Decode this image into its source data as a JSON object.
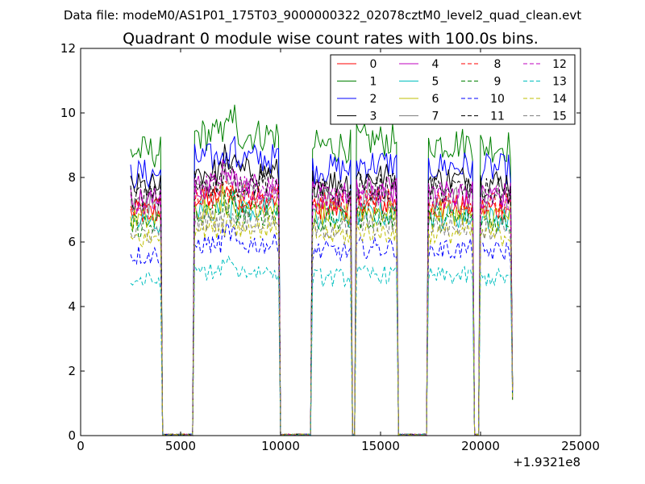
{
  "chart_data": {
    "type": "line",
    "suptitle": "Data file: modeM0/AS1P01_175T03_9000000322_02078cztM0_level2_quad_clean.evt",
    "title": "Quadrant 0 module wise count rates with 100.0s bins.",
    "xlabel": "",
    "ylabel": "",
    "x_offset_label": "+1.9321e8",
    "xlim": [
      0,
      25000
    ],
    "ylim": [
      0,
      12
    ],
    "xticks": [
      0,
      5000,
      10000,
      15000,
      20000,
      25000
    ],
    "xtick_labels": [
      "0",
      "5000",
      "10000",
      "15000",
      "20000",
      "25000"
    ],
    "yticks": [
      0,
      2,
      4,
      6,
      8,
      10,
      12
    ],
    "ytick_labels": [
      "0",
      "2",
      "4",
      "6",
      "8",
      "10",
      "12"
    ],
    "grid": false,
    "legend_position": "top-right",
    "legend_columns": 4,
    "segments": [
      [
        2500,
        4000
      ],
      [
        5700,
        9900
      ],
      [
        11600,
        13500
      ],
      [
        13750,
        15800
      ],
      [
        17400,
        19600
      ],
      [
        20000,
        21650
      ]
    ],
    "series": [
      {
        "name": "0",
        "color": "#ff0000",
        "style": "solid",
        "level": 6.9
      },
      {
        "name": "1",
        "color": "#008000",
        "style": "solid",
        "level": 8.8
      },
      {
        "name": "2",
        "color": "#0000ff",
        "style": "solid",
        "level": 8.1
      },
      {
        "name": "3",
        "color": "#000000",
        "style": "solid",
        "level": 7.7
      },
      {
        "name": "4",
        "color": "#bf00bf",
        "style": "solid",
        "level": 7.3
      },
      {
        "name": "5",
        "color": "#00bfbf",
        "style": "solid",
        "level": 6.6
      },
      {
        "name": "6",
        "color": "#bfbf00",
        "style": "solid",
        "level": 6.7
      },
      {
        "name": "7",
        "color": "#808080",
        "style": "solid",
        "level": 7.1
      },
      {
        "name": "8",
        "color": "#ff0000",
        "style": "dashed",
        "level": 7.0
      },
      {
        "name": "9",
        "color": "#008000",
        "style": "dashed",
        "level": 6.5
      },
      {
        "name": "10",
        "color": "#0000ff",
        "style": "dashed",
        "level": 5.6
      },
      {
        "name": "11",
        "color": "#000000",
        "style": "dashed",
        "level": 7.4
      },
      {
        "name": "12",
        "color": "#bf00bf",
        "style": "dashed",
        "level": 7.2
      },
      {
        "name": "13",
        "color": "#00bfbf",
        "style": "dashed",
        "level": 4.8
      },
      {
        "name": "14",
        "color": "#bfbf00",
        "style": "dashed",
        "level": 6.1
      },
      {
        "name": "15",
        "color": "#808080",
        "style": "dashed",
        "level": 6.3
      }
    ]
  }
}
